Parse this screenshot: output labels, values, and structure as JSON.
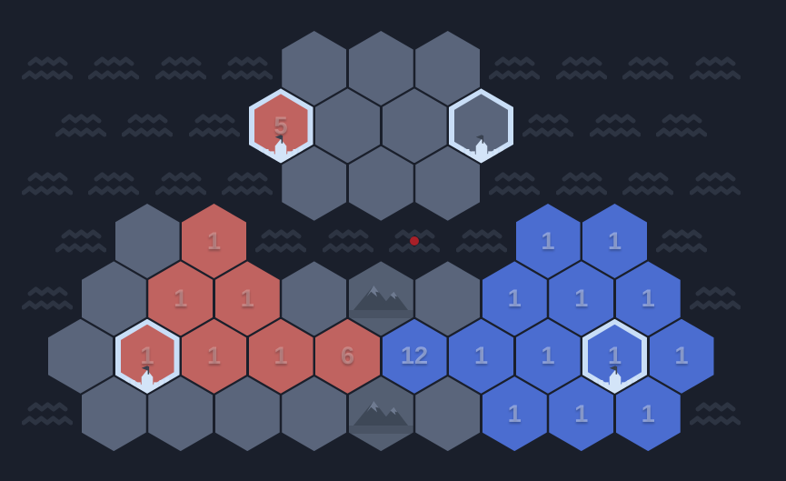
{
  "app": {
    "name": "hex-strategy-board"
  },
  "colors": {
    "background": "#1a1f2b",
    "wave": "#2d3442",
    "tile_gray": "#5a657b",
    "tile_red": "#c06360",
    "tile_blue": "#4b6dd0",
    "tile_mountain": "#545f72",
    "selection_border": "#c9def7",
    "castle": "#d3e4f8",
    "flag": "#39414f",
    "mountain_dark": "#3e4857",
    "mountain_light": "#6e7a90",
    "marker_dot": "#a82028",
    "number_on_red": "rgba(255,255,255,0.25)",
    "number_on_blue": "rgba(255,255,255,0.38)"
  },
  "board": {
    "hexes": [
      {
        "row": 0,
        "col": 3,
        "color": "gray",
        "value": "",
        "selected": false,
        "structure": ""
      },
      {
        "row": 0,
        "col": 4,
        "color": "gray",
        "value": "",
        "selected": false,
        "structure": ""
      },
      {
        "row": 0,
        "col": 5,
        "color": "gray",
        "value": "",
        "selected": false,
        "structure": ""
      },
      {
        "row": 1,
        "col": 2,
        "color": "red",
        "value": "5",
        "selected": true,
        "structure": "castle"
      },
      {
        "row": 1,
        "col": 3,
        "color": "gray",
        "value": "",
        "selected": false,
        "structure": ""
      },
      {
        "row": 1,
        "col": 4,
        "color": "gray",
        "value": "",
        "selected": false,
        "structure": ""
      },
      {
        "row": 1,
        "col": 5,
        "color": "gray",
        "value": "",
        "selected": true,
        "structure": "castle"
      },
      {
        "row": 2,
        "col": 3,
        "color": "gray",
        "value": "",
        "selected": false,
        "structure": ""
      },
      {
        "row": 2,
        "col": 4,
        "color": "gray",
        "value": "",
        "selected": false,
        "structure": ""
      },
      {
        "row": 2,
        "col": 5,
        "color": "gray",
        "value": "",
        "selected": false,
        "structure": ""
      },
      {
        "row": 3,
        "col": 0,
        "color": "gray",
        "value": "",
        "selected": false,
        "structure": ""
      },
      {
        "row": 3,
        "col": 1,
        "color": "red",
        "value": "1",
        "selected": false,
        "structure": ""
      },
      {
        "row": 3,
        "col": 6,
        "color": "blue",
        "value": "1",
        "selected": false,
        "structure": ""
      },
      {
        "row": 3,
        "col": 7,
        "color": "blue",
        "value": "1",
        "selected": false,
        "structure": ""
      },
      {
        "row": 4,
        "col": 0,
        "color": "gray",
        "value": "",
        "selected": false,
        "structure": ""
      },
      {
        "row": 4,
        "col": 1,
        "color": "red",
        "value": "1",
        "selected": false,
        "structure": ""
      },
      {
        "row": 4,
        "col": 2,
        "color": "red",
        "value": "1",
        "selected": false,
        "structure": ""
      },
      {
        "row": 4,
        "col": 3,
        "color": "gray",
        "value": "",
        "selected": false,
        "structure": ""
      },
      {
        "row": 4,
        "col": 4,
        "color": "mountain",
        "value": "",
        "selected": false,
        "structure": "mountain"
      },
      {
        "row": 4,
        "col": 5,
        "color": "gray",
        "value": "",
        "selected": false,
        "structure": ""
      },
      {
        "row": 4,
        "col": 6,
        "color": "blue",
        "value": "1",
        "selected": false,
        "structure": ""
      },
      {
        "row": 4,
        "col": 7,
        "color": "blue",
        "value": "1",
        "selected": false,
        "structure": ""
      },
      {
        "row": 4,
        "col": 8,
        "color": "blue",
        "value": "1",
        "selected": false,
        "structure": ""
      },
      {
        "row": 5,
        "col": -1,
        "color": "gray",
        "value": "",
        "selected": false,
        "structure": ""
      },
      {
        "row": 5,
        "col": 0,
        "color": "red",
        "value": "1",
        "selected": true,
        "structure": "castle"
      },
      {
        "row": 5,
        "col": 1,
        "color": "red",
        "value": "1",
        "selected": false,
        "structure": ""
      },
      {
        "row": 5,
        "col": 2,
        "color": "red",
        "value": "1",
        "selected": false,
        "structure": ""
      },
      {
        "row": 5,
        "col": 3,
        "color": "red",
        "value": "6",
        "selected": false,
        "structure": ""
      },
      {
        "row": 5,
        "col": 4,
        "color": "blue",
        "value": "12",
        "selected": false,
        "structure": ""
      },
      {
        "row": 5,
        "col": 5,
        "color": "blue",
        "value": "1",
        "selected": false,
        "structure": ""
      },
      {
        "row": 5,
        "col": 6,
        "color": "blue",
        "value": "1",
        "selected": false,
        "structure": ""
      },
      {
        "row": 5,
        "col": 7,
        "color": "blue",
        "value": "1",
        "selected": true,
        "structure": "castle"
      },
      {
        "row": 5,
        "col": 8,
        "color": "blue",
        "value": "1",
        "selected": false,
        "structure": ""
      },
      {
        "row": 6,
        "col": 0,
        "color": "gray",
        "value": "",
        "selected": false,
        "structure": ""
      },
      {
        "row": 6,
        "col": 1,
        "color": "gray",
        "value": "",
        "selected": false,
        "structure": ""
      },
      {
        "row": 6,
        "col": 2,
        "color": "gray",
        "value": "",
        "selected": false,
        "structure": ""
      },
      {
        "row": 6,
        "col": 3,
        "color": "gray",
        "value": "",
        "selected": false,
        "structure": ""
      },
      {
        "row": 6,
        "col": 4,
        "color": "mountain",
        "value": "",
        "selected": false,
        "structure": "mountain"
      },
      {
        "row": 6,
        "col": 5,
        "color": "gray",
        "value": "",
        "selected": false,
        "structure": ""
      },
      {
        "row": 6,
        "col": 6,
        "color": "blue",
        "value": "1",
        "selected": false,
        "structure": ""
      },
      {
        "row": 6,
        "col": 7,
        "color": "blue",
        "value": "1",
        "selected": false,
        "structure": ""
      },
      {
        "row": 6,
        "col": 8,
        "color": "blue",
        "value": "1",
        "selected": false,
        "structure": ""
      }
    ],
    "waves": [
      {
        "row": 0,
        "col": -1
      },
      {
        "row": 0,
        "col": 0
      },
      {
        "row": 0,
        "col": 1
      },
      {
        "row": 0,
        "col": 2
      },
      {
        "row": 0,
        "col": 6
      },
      {
        "row": 0,
        "col": 7
      },
      {
        "row": 0,
        "col": 8
      },
      {
        "row": 0,
        "col": 9
      },
      {
        "row": 1,
        "col": -1
      },
      {
        "row": 1,
        "col": 0
      },
      {
        "row": 1,
        "col": 1
      },
      {
        "row": 1,
        "col": 6
      },
      {
        "row": 1,
        "col": 7
      },
      {
        "row": 1,
        "col": 8
      },
      {
        "row": 2,
        "col": -1
      },
      {
        "row": 2,
        "col": 0
      },
      {
        "row": 2,
        "col": 1
      },
      {
        "row": 2,
        "col": 2
      },
      {
        "row": 2,
        "col": 6
      },
      {
        "row": 2,
        "col": 7
      },
      {
        "row": 2,
        "col": 8
      },
      {
        "row": 2,
        "col": 9
      },
      {
        "row": 3,
        "col": -1
      },
      {
        "row": 3,
        "col": 2
      },
      {
        "row": 3,
        "col": 3
      },
      {
        "row": 3,
        "col": 4
      },
      {
        "row": 3,
        "col": 5
      },
      {
        "row": 3,
        "col": 8
      },
      {
        "row": 4,
        "col": -1
      },
      {
        "row": 4,
        "col": 9
      },
      {
        "row": 6,
        "col": -1
      },
      {
        "row": 6,
        "col": 9
      }
    ],
    "marker": {
      "row": 3,
      "col": 4
    }
  }
}
